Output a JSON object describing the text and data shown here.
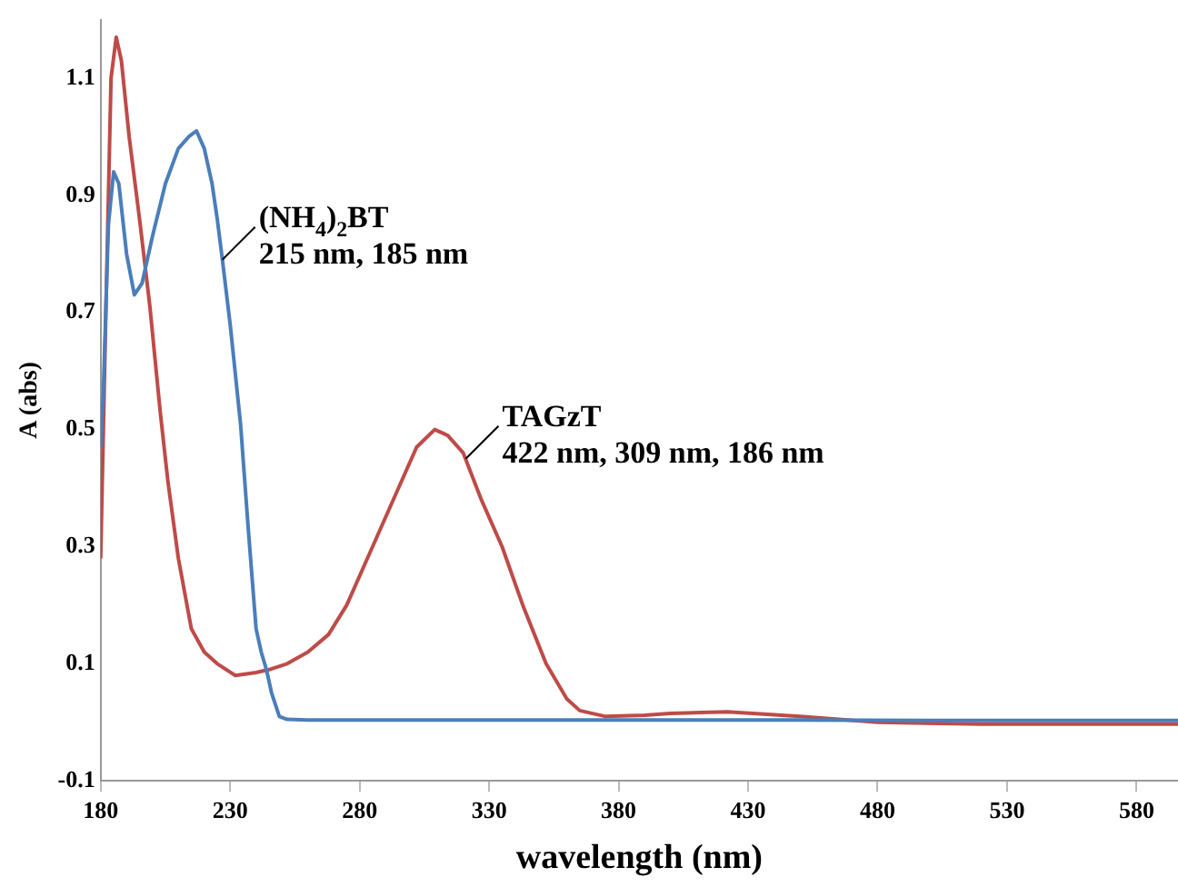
{
  "chart_data": {
    "type": "line",
    "xlabel": "wavelength (nm)",
    "ylabel": "A (abs)",
    "xlim": [
      180,
      596
    ],
    "xticks": [
      180,
      230,
      280,
      330,
      380,
      430,
      480,
      530,
      580
    ],
    "ylim": [
      -0.1,
      1.2
    ],
    "yticks": [
      -0.1,
      0.1,
      0.3,
      0.5,
      0.7,
      0.9,
      1.1
    ],
    "grid": false,
    "legend": false,
    "marker": "none",
    "line_style": "solid",
    "series": [
      {
        "color": "#4a7ebb",
        "x": [
          180,
          181,
          183,
          185,
          187,
          190,
          193,
          196,
          200,
          205,
          210,
          214,
          217,
          220,
          223,
          225,
          227,
          230,
          234,
          237,
          240,
          242,
          244,
          246,
          249,
          252,
          260,
          300,
          350,
          400,
          450,
          500,
          550,
          596
        ],
        "values": [
          0.47,
          0.56,
          0.85,
          0.94,
          0.92,
          0.8,
          0.73,
          0.75,
          0.83,
          0.92,
          0.98,
          1.0,
          1.01,
          0.98,
          0.92,
          0.86,
          0.79,
          0.68,
          0.51,
          0.33,
          0.16,
          0.12,
          0.09,
          0.05,
          0.01,
          0.005,
          0.004,
          0.004,
          0.004,
          0.004,
          0.004,
          0.003,
          0.003,
          0.003
        ]
      },
      {
        "color": "#be4b48",
        "x": [
          180,
          182,
          184,
          186,
          188,
          191,
          195,
          199,
          203,
          206,
          210,
          215,
          220,
          225,
          232,
          240,
          245,
          252,
          260,
          268,
          275,
          285,
          295,
          302,
          309,
          314,
          320,
          327,
          335,
          343,
          352,
          360,
          365,
          375,
          390,
          400,
          422,
          450,
          480,
          520,
          560,
          596
        ],
        "values": [
          0.28,
          0.7,
          1.1,
          1.17,
          1.13,
          1.0,
          0.86,
          0.71,
          0.53,
          0.41,
          0.28,
          0.16,
          0.12,
          0.1,
          0.08,
          0.085,
          0.09,
          0.1,
          0.12,
          0.15,
          0.2,
          0.3,
          0.4,
          0.47,
          0.5,
          0.49,
          0.46,
          0.38,
          0.3,
          0.2,
          0.1,
          0.04,
          0.02,
          0.01,
          0.012,
          0.015,
          0.018,
          0.01,
          0.0,
          -0.003,
          -0.003,
          -0.003
        ]
      }
    ],
    "annotations": [
      {
        "text": "(NH$_{4}$)$_{2}$BT\n215 nm, 185 nm",
        "x": 227,
        "y": 0.79
      },
      {
        "text": "TAGzT\n422 nm, 309 nm, 186 nm",
        "x": 321,
        "y": 0.45
      }
    ]
  }
}
